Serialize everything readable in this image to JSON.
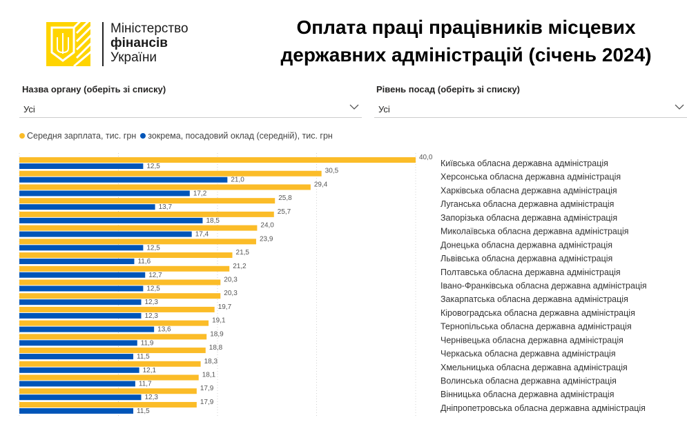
{
  "logo": {
    "line1": "Міністерство",
    "line2": "фінансів",
    "line3": "України"
  },
  "title": {
    "line1": "Оплата праці працівників місцевих",
    "line2": "державних адміністрацій (січень 2024)"
  },
  "filters": {
    "organ": {
      "label": "Назва органу (оберіть зі списку)",
      "value": "Усі"
    },
    "level": {
      "label": "Рівень посад (оберіть зі списку)",
      "value": "Усі"
    }
  },
  "colors": {
    "avg": "#fbbc28",
    "salary": "#0055b8",
    "grid": "#d0d0d0"
  },
  "chart_data": {
    "type": "bar",
    "orientation": "horizontal",
    "xlim": [
      0,
      40
    ],
    "grid": true,
    "legend_position": "top-left",
    "categories": [
      "Київська обласна державна адміністрація",
      "Херсонська обласна державна адміністрація",
      "Харківська обласна державна адміністрація",
      "Луганська обласна державна адміністрація",
      "Запорізька обласна державна адміністрація",
      "Миколаївська обласна державна адміністрація",
      "Донецька обласна державна адміністрація",
      "Львівська обласна державна адміністрація",
      "Полтавська обласна державна адміністрація",
      "Івано-Франківська обласна державна адміністрація",
      "Закарпатська обласна державна адміністрація",
      "Кіровоградська обласна державна адміністрація",
      "Тернопільська обласна державна адміністрація",
      "Чернівецька обласна державна адміністрація",
      "Черкаська обласна державна адміністрація",
      "Хмельницька обласна державна адміністрація",
      "Волинська обласна державна адміністрація",
      "Вінницька обласна державна адміністрація",
      "Дніпропетровська обласна державна адміністрація"
    ],
    "series": [
      {
        "name": "Середня зарплата, тис. грн",
        "values": [
          40.0,
          30.5,
          29.4,
          25.8,
          25.7,
          24.0,
          23.9,
          21.5,
          21.2,
          20.3,
          20.3,
          19.7,
          19.1,
          18.9,
          18.8,
          18.3,
          18.1,
          17.9,
          17.9
        ]
      },
      {
        "name": "зокрема, посадовий оклад (середній), тис. грн",
        "values": [
          12.5,
          21.0,
          17.2,
          13.7,
          18.5,
          17.4,
          12.5,
          11.6,
          12.7,
          12.5,
          12.3,
          12.3,
          13.6,
          11.9,
          11.5,
          12.1,
          11.7,
          12.3,
          11.5
        ]
      }
    ]
  }
}
